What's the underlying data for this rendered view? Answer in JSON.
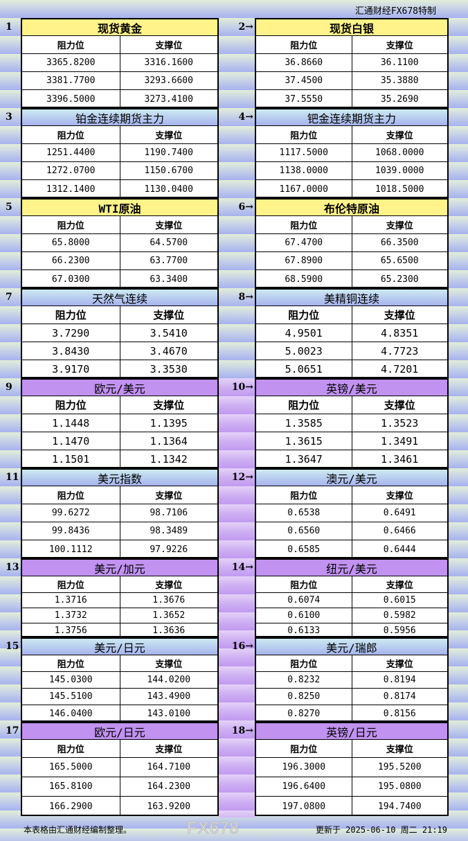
{
  "header": {
    "note": "汇通财经FX678特制"
  },
  "column_labels": {
    "resistance": "阻力位",
    "support": "支撑位"
  },
  "colors": {
    "yellow": "#fff38a",
    "blue": "#a6b3ee",
    "purple": "#c192f0"
  },
  "sections": [
    {
      "num": "1",
      "title": "现货黄金",
      "theme": "yellow",
      "rows": [
        [
          "3365.8200",
          "3316.1600"
        ],
        [
          "3381.7700",
          "3293.6600"
        ],
        [
          "3396.5000",
          "3273.4100"
        ]
      ]
    },
    {
      "num": "2→",
      "title": "现货白银",
      "theme": "yellow",
      "rows": [
        [
          "36.8660",
          "36.1100"
        ],
        [
          "37.4500",
          "35.3880"
        ],
        [
          "37.5550",
          "35.2690"
        ]
      ]
    },
    {
      "num": "3",
      "title": "铂金连续期货主力",
      "theme": "blue",
      "rows": [
        [
          "1251.4400",
          "1190.7400"
        ],
        [
          "1272.0700",
          "1150.6700"
        ],
        [
          "1312.1400",
          "1130.0400"
        ]
      ]
    },
    {
      "num": "4→",
      "title": "钯金连续期货主力",
      "theme": "blue",
      "rows": [
        [
          "1117.5000",
          "1068.0000"
        ],
        [
          "1138.0000",
          "1039.0000"
        ],
        [
          "1167.0000",
          "1018.5000"
        ]
      ]
    },
    {
      "num": "5",
      "title": "WTI原油",
      "theme": "yellow",
      "rows": [
        [
          "65.8000",
          "64.5700"
        ],
        [
          "66.2300",
          "63.7700"
        ],
        [
          "67.0300",
          "63.3400"
        ]
      ]
    },
    {
      "num": "6→",
      "title": "布伦特原油",
      "theme": "yellow",
      "rows": [
        [
          "67.4700",
          "66.3500"
        ],
        [
          "67.8900",
          "65.6500"
        ],
        [
          "68.5900",
          "65.2300"
        ]
      ]
    },
    {
      "num": "7",
      "title": "天然气连续",
      "theme": "blue",
      "rows": [
        [
          "3.7290",
          "3.5410"
        ],
        [
          "3.8430",
          "3.4670"
        ],
        [
          "3.9170",
          "3.3530"
        ]
      ]
    },
    {
      "num": "8→",
      "title": "美精铜连续",
      "theme": "blue",
      "rows": [
        [
          "4.9501",
          "4.8351"
        ],
        [
          "5.0023",
          "4.7723"
        ],
        [
          "5.0651",
          "4.7201"
        ]
      ]
    },
    {
      "num": "9",
      "title": "欧元/美元",
      "theme": "purple",
      "rows": [
        [
          "1.1448",
          "1.1395"
        ],
        [
          "1.1470",
          "1.1364"
        ],
        [
          "1.1501",
          "1.1342"
        ]
      ]
    },
    {
      "num": "10→",
      "title": "英镑/美元",
      "theme": "purple",
      "rows": [
        [
          "1.3585",
          "1.3523"
        ],
        [
          "1.3615",
          "1.3491"
        ],
        [
          "1.3647",
          "1.3461"
        ]
      ]
    },
    {
      "num": "11",
      "title": "美元指数",
      "theme": "blue",
      "rows": [
        [
          "99.6272",
          "98.7106"
        ],
        [
          "99.8436",
          "98.3489"
        ],
        [
          "100.1112",
          "97.9226"
        ]
      ]
    },
    {
      "num": "12→",
      "title": "澳元/美元",
      "theme": "blue",
      "rows": [
        [
          "0.6538",
          "0.6491"
        ],
        [
          "0.6560",
          "0.6466"
        ],
        [
          "0.6585",
          "0.6444"
        ]
      ]
    },
    {
      "num": "13",
      "title": "美元/加元",
      "theme": "purple",
      "rows": [
        [
          "1.3716",
          "1.3676"
        ],
        [
          "1.3732",
          "1.3652"
        ],
        [
          "1.3756",
          "1.3636"
        ]
      ]
    },
    {
      "num": "14→",
      "title": "纽元/美元",
      "theme": "purple",
      "rows": [
        [
          "0.6074",
          "0.6015"
        ],
        [
          "0.6100",
          "0.5982"
        ],
        [
          "0.6133",
          "0.5956"
        ]
      ]
    },
    {
      "num": "15",
      "title": "美元/日元",
      "theme": "blue",
      "rows": [
        [
          "145.0300",
          "144.0200"
        ],
        [
          "145.5100",
          "143.4900"
        ],
        [
          "146.0400",
          "143.0100"
        ]
      ]
    },
    {
      "num": "16→",
      "title": "美元/瑞郎",
      "theme": "blue",
      "rows": [
        [
          "0.8232",
          "0.8194"
        ],
        [
          "0.8250",
          "0.8174"
        ],
        [
          "0.8270",
          "0.8156"
        ]
      ]
    },
    {
      "num": "17",
      "title": "欧元/日元",
      "theme": "purple",
      "rows": [
        [
          "165.5000",
          "164.7100"
        ],
        [
          "165.8100",
          "164.2300"
        ],
        [
          "166.2900",
          "163.9200"
        ]
      ]
    },
    {
      "num": "18→",
      "title": "英镑/日元",
      "theme": "purple",
      "rows": [
        [
          "196.3000",
          "195.5200"
        ],
        [
          "196.6400",
          "195.0800"
        ],
        [
          "197.0800",
          "194.7400"
        ]
      ]
    }
  ],
  "footer": {
    "source": "本表格由汇通财经编制整理。",
    "updated": "更新于 2025-06-10 周二 21:19"
  },
  "watermark": "FX678"
}
